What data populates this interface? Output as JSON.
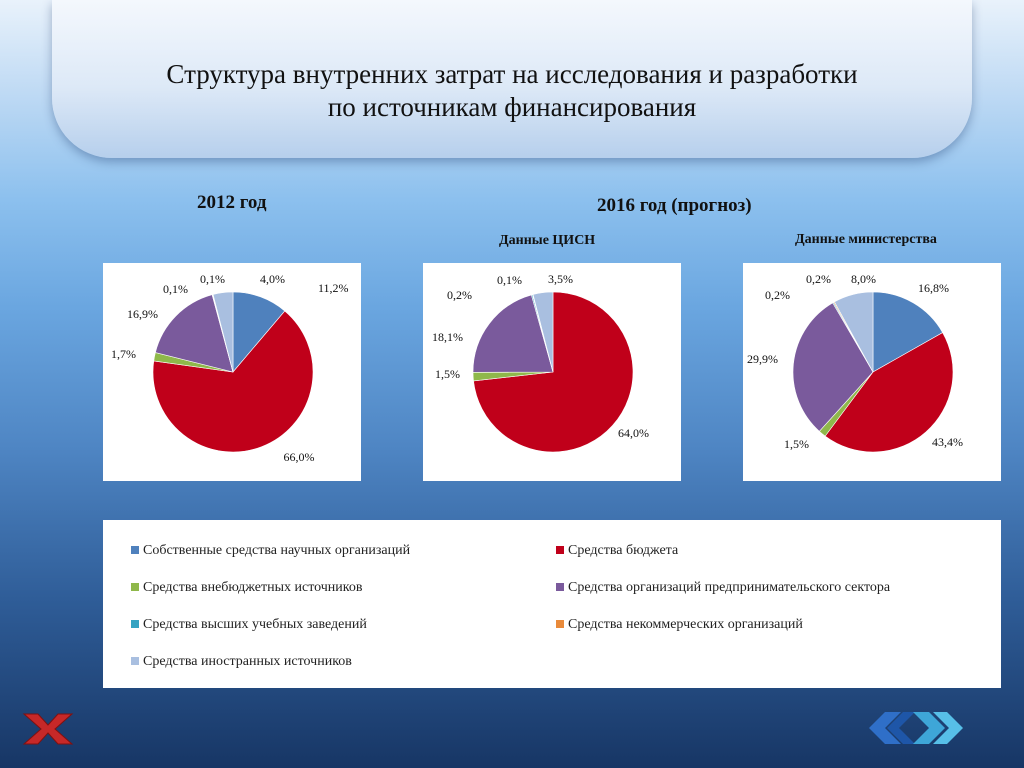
{
  "title_line1": "Структура внутренних затрат на исследования и разработки",
  "title_line2": "по источникам финансирования",
  "year_2012": "2012 год",
  "year_2016": "2016 год (прогноз)",
  "source_cisn": "Данные ЦИСН",
  "source_ministry": "Данные министерства",
  "legend": [
    {
      "label": "Собственные средства научных организаций",
      "color": "#4f81bd"
    },
    {
      "label": "Средства бюджета",
      "color": "#c0001a"
    },
    {
      "label": "Средства внебюджетных источников",
      "color": "#8fb84a"
    },
    {
      "label": "Средства организаций предпринимательского сектора",
      "color": "#7a5a9c"
    },
    {
      "label": "Средства высших учебных заведений",
      "color": "#35a3c2"
    },
    {
      "label": "Средства некоммерческих организаций",
      "color": "#e98a3a"
    },
    {
      "label": "Средства иностранных источников",
      "color": "#a9bfe0"
    }
  ],
  "chart_data": [
    {
      "type": "pie",
      "title": "2012 год",
      "categories": [
        "Собственные средства научных организаций",
        "Средства бюджета",
        "Средства внебюджетных источников",
        "Средства организаций предпринимательского сектора",
        "Средства высших учебных заведений",
        "Средства некоммерческих организаций",
        "Средства иностранных источников"
      ],
      "values": [
        11.2,
        66.0,
        1.7,
        16.9,
        0.1,
        0.1,
        4.0
      ],
      "labels": [
        "11,2%",
        "66,0%",
        "1,7%",
        "16,9%",
        "0,1%",
        "0,1%",
        "4,0%"
      ]
    },
    {
      "type": "pie",
      "title": "Данные ЦИСН",
      "categories": [
        "Собственные средства научных организаций",
        "Средства бюджета",
        "Средства внебюджетных источников",
        "Средства организаций предпринимательского сектора",
        "Средства высших учебных заведений",
        "Средства некоммерческих организаций",
        "Средства иностранных источников"
      ],
      "values": [
        0,
        64.0,
        1.5,
        18.1,
        0.2,
        0.1,
        3.5
      ],
      "labels": [
        "",
        "64,0%",
        "1,5%",
        "18,1%",
        "0,2%",
        "0,1%",
        "3,5%"
      ]
    },
    {
      "type": "pie",
      "title": "Данные министерства",
      "categories": [
        "Собственные средства научных организаций",
        "Средства бюджета",
        "Средства внебюджетных источников",
        "Средства организаций предпринимательского сектора",
        "Средства высших учебных заведений",
        "Средства некоммерческих организаций",
        "Средства иностранных источников"
      ],
      "values": [
        16.8,
        43.4,
        1.5,
        29.9,
        0.2,
        0.2,
        8.0
      ],
      "labels": [
        "16,8%",
        "43,4%",
        "1,5%",
        "29,9%",
        "0,2%",
        "0,2%",
        "8,0%"
      ]
    }
  ]
}
